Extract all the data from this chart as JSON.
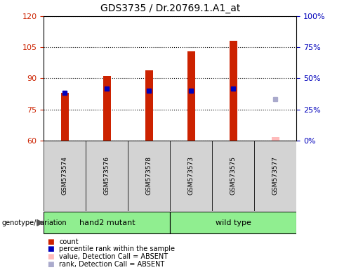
{
  "title": "GDS3735 / Dr.20769.1.A1_at",
  "samples": [
    "GSM573574",
    "GSM573576",
    "GSM573578",
    "GSM573573",
    "GSM573575",
    "GSM573577"
  ],
  "bar_values": [
    83,
    91,
    94,
    103,
    108,
    null
  ],
  "bar_color": "#CC2200",
  "absent_bar_value": 61.5,
  "absent_bar_color": "#FFBBBB",
  "rank_values": [
    83,
    85,
    84,
    84,
    85,
    null
  ],
  "rank_color": "#0000BB",
  "absent_rank_value": 80,
  "absent_rank_color": "#AAAACC",
  "ylim_left": [
    60,
    120
  ],
  "ylim_right": [
    0,
    100
  ],
  "yticks_left": [
    60,
    75,
    90,
    105,
    120
  ],
  "yticks_right": [
    0,
    25,
    50,
    75,
    100
  ],
  "left_tick_color": "#CC2200",
  "right_tick_color": "#0000BB",
  "grid_color": "#000000",
  "bar_width": 0.18,
  "plot_bg_color": "#FFFFFF",
  "figure_bg_color": "#FFFFFF",
  "sample_box_color": "#D3D3D3",
  "hand2_color": "#90EE90",
  "wildtype_color": "#90EE90",
  "genotype_label": "genotype/variation",
  "group1_label": "hand2 mutant",
  "group2_label": "wild type",
  "legend_items": [
    {
      "label": "count",
      "color": "#CC2200"
    },
    {
      "label": "percentile rank within the sample",
      "color": "#0000BB"
    },
    {
      "label": "value, Detection Call = ABSENT",
      "color": "#FFBBBB"
    },
    {
      "label": "rank, Detection Call = ABSENT",
      "color": "#AAAACC"
    }
  ]
}
